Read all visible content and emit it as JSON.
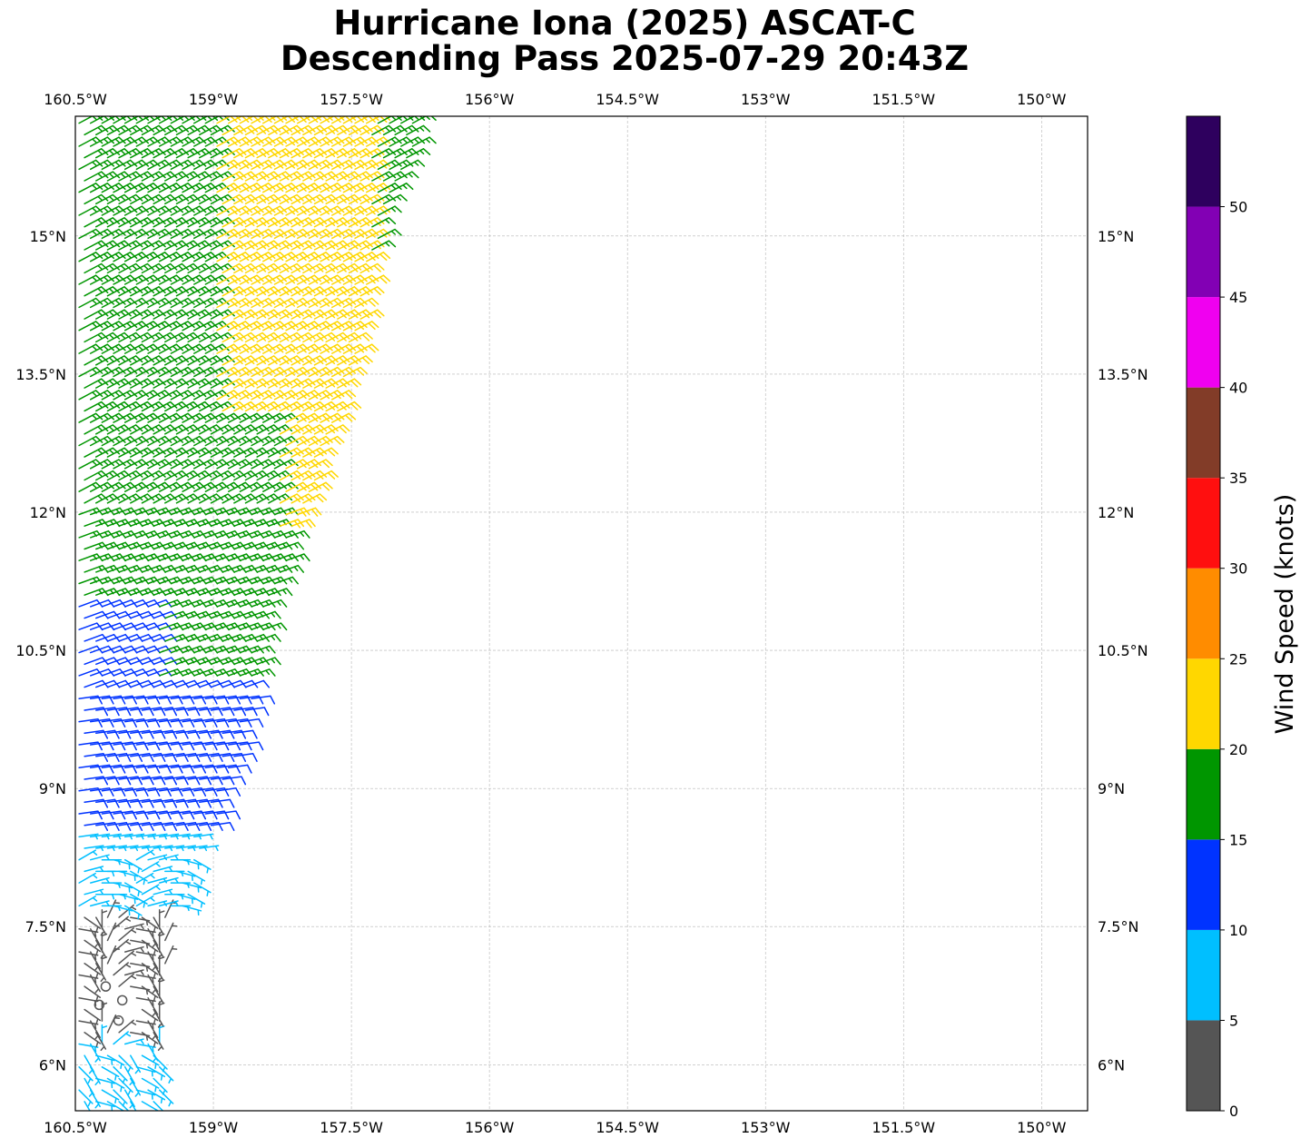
{
  "title": {
    "line1": "Hurricane Iona (2025) ASCAT-C",
    "line2": "Descending Pass 2025-07-29 20:43Z"
  },
  "chart_data": {
    "type": "wind_barb_map",
    "title": "Hurricane Iona (2025) ASCAT-C Descending Pass 2025-07-29 20:43Z",
    "x_axis": {
      "range": [
        -160.5,
        -149.5
      ],
      "ticks": [
        -160.5,
        -159,
        -157.5,
        -156,
        -154.5,
        -153,
        -151.5,
        -150
      ],
      "tick_labels": [
        "160.5°W",
        "159°W",
        "157.5°W",
        "156°W",
        "154.5°W",
        "153°W",
        "151.5°W",
        "150°W"
      ],
      "labels_top_and_bottom": true
    },
    "y_axis": {
      "range": [
        5.5,
        16.3
      ],
      "ticks": [
        6,
        7.5,
        9,
        10.5,
        12,
        13.5,
        15
      ],
      "tick_labels": [
        "6°N",
        "7.5°N",
        "9°N",
        "10.5°N",
        "12°N",
        "13.5°N",
        "15°N"
      ],
      "labels_left_and_right": true
    },
    "grid": true,
    "grid_style": "dashed",
    "swath": {
      "right_edge": [
        [
          7.0,
          -159.55
        ],
        [
          9.0,
          -158.85
        ],
        [
          10.0,
          -158.55
        ],
        [
          11.0,
          -158.4
        ],
        [
          12.0,
          -158.0
        ],
        [
          13.5,
          -157.5
        ],
        [
          15.0,
          -157.2
        ],
        [
          16.3,
          -156.7
        ]
      ],
      "left_edge": -160.5
    },
    "wind_regions": [
      {
        "lat_min": 13.0,
        "lat_max": 16.3,
        "lon_min": -159.0,
        "lon_max": -157.3,
        "speed_kt": 22
      },
      {
        "lat_min": 11.8,
        "lat_max": 13.0,
        "lon_min": -158.3,
        "lon_max": -157.6,
        "speed_kt": 22
      },
      {
        "lat_min": 11.0,
        "lat_max": 16.3,
        "lon_min": -160.5,
        "lon_max": -156.6,
        "speed_kt": 17
      },
      {
        "lat_min": 10.2,
        "lat_max": 11.0,
        "lon_min": -159.6,
        "lon_max": -158.3,
        "speed_kt": 17
      },
      {
        "lat_min": 8.5,
        "lat_max": 11.7,
        "lon_min": -160.5,
        "lon_max": -158.5,
        "speed_kt": 12
      },
      {
        "lat_min": 7.7,
        "lat_max": 8.5,
        "lon_min": -160.5,
        "lon_max": -159.1,
        "speed_kt": 7
      },
      {
        "lat_min": 6.3,
        "lat_max": 7.7,
        "lon_min": -160.5,
        "lon_max": -159.5,
        "speed_kt": 3
      },
      {
        "lat_min": 5.5,
        "lat_max": 6.3,
        "lon_min": -160.5,
        "lon_max": -159.5,
        "speed_kt": 7
      }
    ],
    "calm_points": [
      [
        6.85,
        -160.17
      ],
      [
        6.65,
        -160.24
      ],
      [
        6.7,
        -159.99
      ],
      [
        6.48,
        -160.03
      ]
    ],
    "wind_direction": "from the northeast (trade winds) in the north, turning light and variable near 6-8°N",
    "colorbar": {
      "label": "Wind Speed (knots)",
      "bounds": [
        0,
        5,
        10,
        15,
        20,
        25,
        30,
        35,
        40,
        45,
        50,
        55
      ],
      "tick_values": [
        0,
        5,
        10,
        15,
        20,
        25,
        30,
        35,
        40,
        45,
        50
      ],
      "tick_labels": [
        "0",
        "5",
        "10",
        "15",
        "20",
        "25",
        "30",
        "35",
        "40",
        "45",
        "50"
      ],
      "colors": [
        "#555555",
        "#00bfff",
        "#0033ff",
        "#009600",
        "#ffd700",
        "#ff8c00",
        "#ff0f0f",
        "#823c28",
        "#f000f0",
        "#8200b4",
        "#2e005e"
      ]
    }
  }
}
